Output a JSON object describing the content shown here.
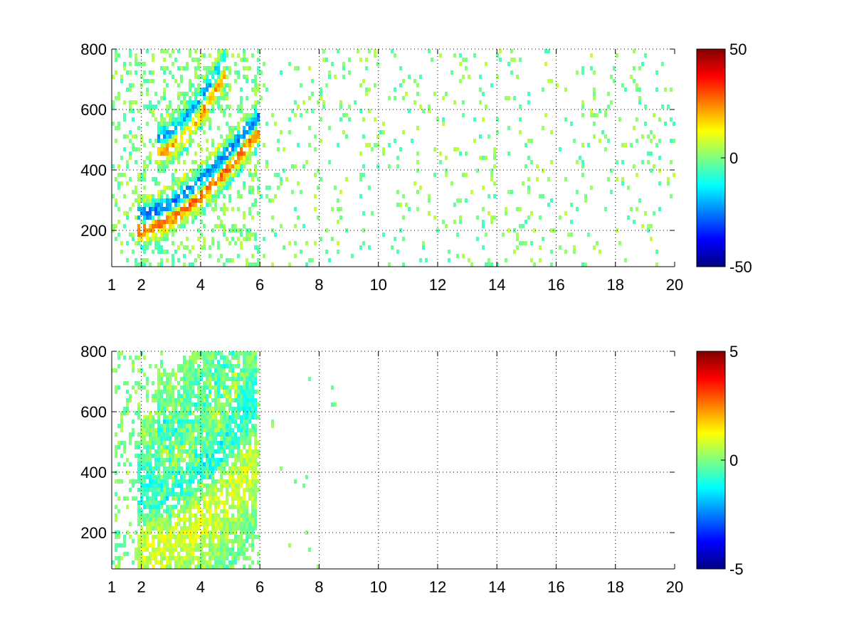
{
  "chart_data": [
    {
      "type": "heatmap",
      "title": "",
      "xlabel": "",
      "ylabel": "",
      "xlim": [
        1,
        20
      ],
      "ylim": [
        80,
        800
      ],
      "xticks": [
        1,
        2,
        4,
        6,
        8,
        10,
        12,
        14,
        16,
        18,
        20
      ],
      "yticks": [
        200,
        400,
        600,
        800
      ],
      "grid": "dotted",
      "colormap": "jet",
      "colorbar": {
        "min": -50,
        "max": 50,
        "ticks": [
          50,
          0,
          -50
        ]
      },
      "features": [
        {
          "x": [
            1.9,
            6.0
          ],
          "y_start": 225,
          "y_end": 560,
          "amplitude": 45,
          "width": 22
        },
        {
          "x": [
            2.5,
            4.8
          ],
          "y_start": 480,
          "y_end": 740,
          "amplitude": 35,
          "width": 22
        }
      ],
      "noise_level": 15
    },
    {
      "type": "heatmap",
      "title": "",
      "xlabel": "",
      "ylabel": "",
      "xlim": [
        1,
        20
      ],
      "ylim": [
        80,
        800
      ],
      "xticks": [
        1,
        2,
        4,
        6,
        8,
        10,
        12,
        14,
        16,
        18,
        20
      ],
      "yticks": [
        200,
        400,
        600,
        800
      ],
      "grid": "dotted",
      "colormap": "jet",
      "colorbar": {
        "min": -5,
        "max": 5,
        "ticks": [
          5,
          0,
          -5
        ]
      },
      "features": [
        {
          "x": [
            1.9,
            5.9
          ],
          "y_start": 225,
          "y_end": 540,
          "amplitude": 1.5,
          "width": 90
        },
        {
          "x": [
            2.5,
            5.2
          ],
          "y_start": 480,
          "y_end": 740,
          "amplitude": 1.0,
          "width": 60
        }
      ],
      "noise_level": 1.2
    }
  ]
}
